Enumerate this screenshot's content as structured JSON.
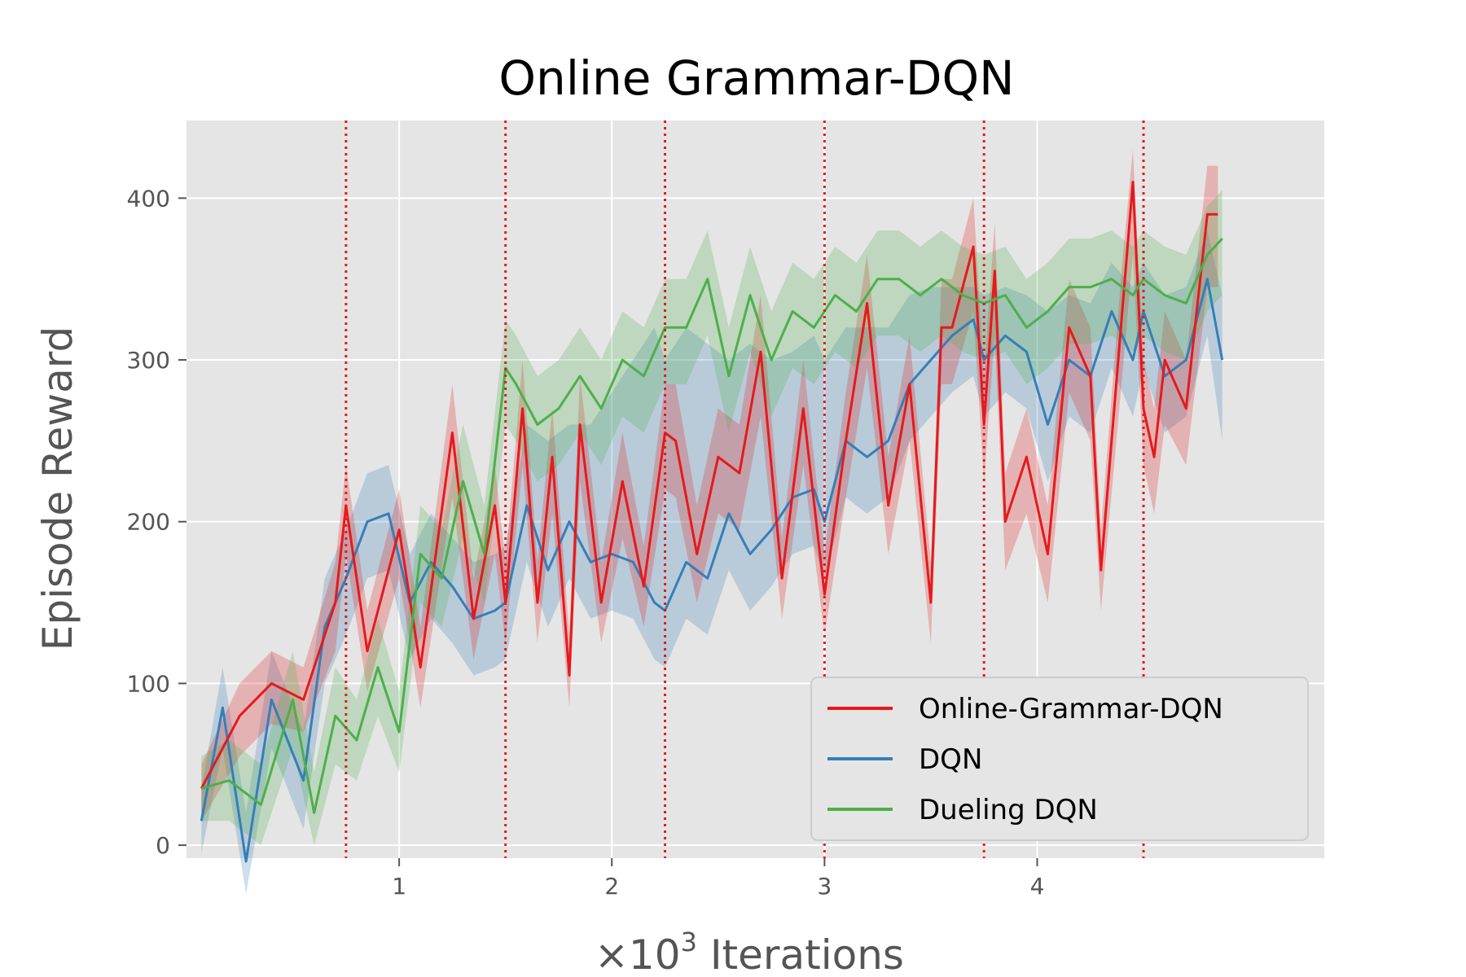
{
  "chart_data": {
    "type": "line",
    "title": "Online Grammar-DQN",
    "xlabel_prefix": "×10",
    "xlabel_exp": "3",
    "xlabel_rest": " Iterations",
    "ylabel": "Episode Reward",
    "xlim": [
      0,
      5.35
    ],
    "ylim": [
      -8,
      448
    ],
    "xticks": [
      1,
      2,
      3,
      4
    ],
    "yticks": [
      0,
      100,
      200,
      300,
      400
    ],
    "grid": true,
    "legend_position": "lower-right",
    "vlines": [
      0.75,
      1.5,
      2.25,
      3.0,
      3.75,
      4.5
    ],
    "vline_color": "#e41a1c",
    "background_color": "#e5e5e5",
    "series": [
      {
        "name": "Online-Grammar-DQN",
        "color": "#e41a1c",
        "x": [
          0.07,
          0.25,
          0.4,
          0.55,
          0.7,
          0.75,
          0.85,
          1.0,
          1.1,
          1.25,
          1.35,
          1.45,
          1.5,
          1.58,
          1.65,
          1.72,
          1.8,
          1.85,
          1.95,
          2.05,
          2.15,
          2.25,
          2.3,
          2.4,
          2.5,
          2.6,
          2.7,
          2.8,
          2.9,
          3.0,
          3.1,
          3.2,
          3.3,
          3.4,
          3.5,
          3.55,
          3.6,
          3.7,
          3.75,
          3.8,
          3.85,
          3.95,
          4.05,
          4.15,
          4.25,
          4.3,
          4.4,
          4.45,
          4.5,
          4.55,
          4.6,
          4.7,
          4.8,
          4.85
        ],
        "y": [
          35,
          80,
          100,
          90,
          150,
          210,
          120,
          195,
          110,
          255,
          140,
          210,
          150,
          270,
          150,
          240,
          105,
          260,
          150,
          225,
          160,
          255,
          250,
          180,
          240,
          230,
          305,
          165,
          270,
          155,
          250,
          335,
          210,
          285,
          150,
          320,
          320,
          370,
          260,
          355,
          200,
          240,
          180,
          320,
          290,
          170,
          330,
          410,
          270,
          240,
          300,
          270,
          390,
          390
        ],
        "band_low": [
          15,
          55,
          75,
          70,
          120,
          180,
          95,
          165,
          85,
          215,
          115,
          180,
          125,
          235,
          125,
          205,
          85,
          225,
          125,
          190,
          135,
          220,
          215,
          150,
          205,
          195,
          265,
          140,
          235,
          130,
          215,
          295,
          180,
          250,
          125,
          285,
          285,
          330,
          225,
          315,
          170,
          205,
          150,
          280,
          250,
          145,
          290,
          365,
          235,
          205,
          260,
          235,
          345,
          345
        ],
        "band_high": [
          50,
          100,
          120,
          110,
          175,
          235,
          145,
          220,
          135,
          285,
          165,
          235,
          175,
          300,
          175,
          270,
          130,
          290,
          175,
          255,
          185,
          285,
          285,
          210,
          270,
          260,
          340,
          190,
          300,
          180,
          280,
          365,
          240,
          315,
          175,
          350,
          350,
          400,
          290,
          385,
          230,
          270,
          210,
          350,
          320,
          195,
          360,
          430,
          300,
          270,
          330,
          300,
          420,
          420
        ]
      },
      {
        "name": "DQN",
        "color": "#377eb8",
        "x": [
          0.07,
          0.17,
          0.28,
          0.4,
          0.55,
          0.65,
          0.75,
          0.85,
          0.95,
          1.05,
          1.15,
          1.25,
          1.35,
          1.45,
          1.5,
          1.6,
          1.7,
          1.8,
          1.9,
          2.0,
          2.1,
          2.2,
          2.25,
          2.35,
          2.45,
          2.55,
          2.65,
          2.75,
          2.85,
          2.95,
          3.0,
          3.1,
          3.2,
          3.3,
          3.4,
          3.5,
          3.6,
          3.7,
          3.75,
          3.85,
          3.95,
          4.05,
          4.15,
          4.25,
          4.35,
          4.45,
          4.5,
          4.6,
          4.7,
          4.8,
          4.87
        ],
        "y": [
          15,
          85,
          -10,
          90,
          40,
          135,
          165,
          200,
          205,
          150,
          175,
          160,
          140,
          145,
          150,
          210,
          170,
          200,
          175,
          180,
          175,
          150,
          145,
          175,
          165,
          205,
          180,
          195,
          215,
          220,
          200,
          250,
          240,
          250,
          285,
          300,
          315,
          325,
          300,
          315,
          305,
          260,
          300,
          290,
          330,
          300,
          330,
          290,
          300,
          350,
          300
        ],
        "band_low": [
          -5,
          60,
          -30,
          60,
          10,
          100,
          130,
          165,
          170,
          115,
          140,
          125,
          105,
          110,
          115,
          175,
          135,
          165,
          140,
          145,
          140,
          115,
          110,
          140,
          130,
          170,
          145,
          160,
          180,
          185,
          165,
          215,
          205,
          215,
          250,
          265,
          280,
          290,
          265,
          280,
          270,
          225,
          265,
          255,
          295,
          265,
          295,
          255,
          265,
          315,
          250
        ],
        "band_high": [
          35,
          110,
          20,
          120,
          70,
          165,
          195,
          230,
          235,
          180,
          205,
          190,
          175,
          180,
          185,
          260,
          250,
          260,
          260,
          280,
          300,
          320,
          300,
          320,
          310,
          300,
          310,
          300,
          305,
          315,
          300,
          320,
          320,
          320,
          340,
          345,
          345,
          345,
          340,
          345,
          340,
          330,
          340,
          335,
          360,
          345,
          360,
          340,
          345,
          380,
          340
        ]
      },
      {
        "name": "Dueling DQN",
        "color": "#4daf4a",
        "x": [
          0.07,
          0.2,
          0.35,
          0.5,
          0.6,
          0.7,
          0.8,
          0.9,
          1.0,
          1.1,
          1.2,
          1.3,
          1.4,
          1.5,
          1.55,
          1.65,
          1.75,
          1.85,
          1.95,
          2.05,
          2.15,
          2.25,
          2.35,
          2.45,
          2.55,
          2.65,
          2.75,
          2.85,
          2.95,
          3.05,
          3.15,
          3.25,
          3.35,
          3.45,
          3.55,
          3.65,
          3.75,
          3.85,
          3.95,
          4.05,
          4.15,
          4.25,
          4.35,
          4.45,
          4.5,
          4.6,
          4.7,
          4.8,
          4.87
        ],
        "y": [
          35,
          40,
          25,
          90,
          20,
          80,
          65,
          110,
          70,
          180,
          165,
          225,
          180,
          295,
          285,
          260,
          270,
          290,
          270,
          300,
          290,
          320,
          320,
          350,
          290,
          340,
          300,
          330,
          320,
          340,
          330,
          350,
          350,
          340,
          350,
          340,
          335,
          340,
          320,
          330,
          345,
          345,
          350,
          340,
          350,
          340,
          335,
          365,
          375
        ],
        "band_low": [
          15,
          15,
          0,
          60,
          0,
          50,
          40,
          80,
          45,
          150,
          135,
          190,
          150,
          260,
          250,
          225,
          235,
          255,
          235,
          265,
          255,
          285,
          285,
          315,
          255,
          305,
          265,
          295,
          285,
          305,
          295,
          315,
          315,
          305,
          315,
          305,
          300,
          305,
          285,
          295,
          310,
          310,
          315,
          305,
          315,
          305,
          300,
          330,
          340
        ],
        "band_high": [
          55,
          65,
          50,
          120,
          45,
          110,
          90,
          140,
          95,
          210,
          195,
          260,
          210,
          325,
          315,
          290,
          300,
          320,
          300,
          330,
          320,
          350,
          350,
          380,
          320,
          370,
          330,
          360,
          350,
          370,
          360,
          380,
          380,
          370,
          380,
          370,
          365,
          370,
          350,
          360,
          375,
          375,
          380,
          370,
          380,
          370,
          365,
          395,
          405
        ]
      }
    ]
  }
}
